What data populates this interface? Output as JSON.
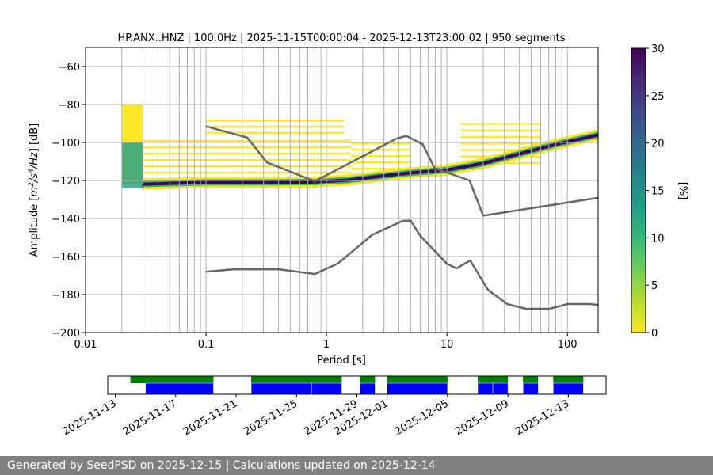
{
  "chart_data": [
    {
      "type": "heatmap",
      "title": "HP.ANX..HNZ | 100.0Hz | 2025-11-15T00:00:04 - 2025-12-13T23:00:02 | 950 segments",
      "xlabel": "Period [s]",
      "ylabel_parts": [
        "Amplitude [",
        "m",
        "2",
        "/s",
        "4",
        "/Hz",
        "] [dB]"
      ],
      "xscale": "log",
      "xlim": [
        0.01,
        180
      ],
      "ylim": [
        -200,
        -50
      ],
      "x_ticks": [
        {
          "value": 0.01,
          "label": "0.01"
        },
        {
          "value": 0.1,
          "label": "0.1"
        },
        {
          "value": 1,
          "label": "1"
        },
        {
          "value": 10,
          "label": "10"
        },
        {
          "value": 100,
          "label": "100"
        }
      ],
      "y_ticks": [
        {
          "value": -60,
          "label": "−60"
        },
        {
          "value": -80,
          "label": "−80"
        },
        {
          "value": -100,
          "label": "−100"
        },
        {
          "value": -120,
          "label": "−120"
        },
        {
          "value": -140,
          "label": "−140"
        },
        {
          "value": -160,
          "label": "−160"
        },
        {
          "value": -180,
          "label": "−180"
        },
        {
          "value": -200,
          "label": "−200"
        }
      ],
      "grid": true,
      "vertical_gridlines": [
        0.02,
        0.03,
        0.04,
        0.05,
        0.06,
        0.07,
        0.08,
        0.09,
        0.1,
        0.2,
        0.3,
        0.4,
        0.5,
        0.6,
        0.7,
        0.8,
        0.9,
        1,
        2,
        3,
        4,
        5,
        6,
        7,
        8,
        9,
        10,
        20,
        30,
        40,
        50,
        60,
        70,
        80,
        90,
        100
      ],
      "colorbar": {
        "label": "[%]",
        "range": [
          0,
          30
        ],
        "ticks": [
          {
            "value": 0,
            "label": "0"
          },
          {
            "value": 5,
            "label": "5"
          },
          {
            "value": 10,
            "label": "10"
          },
          {
            "value": 15,
            "label": "15"
          },
          {
            "value": 20,
            "label": "20"
          },
          {
            "value": 25,
            "label": "25"
          },
          {
            "value": 30,
            "label": "30"
          }
        ],
        "colors": [
          "#fde725",
          "#b5de2b",
          "#6ece58",
          "#35b779",
          "#1f9e89",
          "#26828e",
          "#31688e",
          "#3e4989",
          "#482878",
          "#440154"
        ]
      },
      "noise_models": [
        {
          "points": [
            [
              0.1,
              -91.5
            ],
            [
              0.22,
              -97.4
            ],
            [
              0.32,
              -110.5
            ],
            [
              0.8,
              -120.4
            ],
            [
              3.8,
              -98
            ],
            [
              4.6,
              -96.5
            ],
            [
              6.3,
              -101
            ],
            [
              7.9,
              -113.5
            ],
            [
              15.4,
              -120
            ],
            [
              20,
              -138.5
            ],
            [
              354.8,
              -126.2
            ]
          ]
        },
        {
          "points": [
            [
              0.1,
              -168.0
            ],
            [
              0.17,
              -166.7
            ],
            [
              0.4,
              -166.7
            ],
            [
              0.8,
              -169.2
            ],
            [
              1.24,
              -163.7
            ],
            [
              2.4,
              -148.6
            ],
            [
              4.3,
              -141.2
            ],
            [
              5.0,
              -141.1
            ],
            [
              6.0,
              -149.1
            ],
            [
              10.0,
              -163.8
            ],
            [
              12.0,
              -166.2
            ],
            [
              15.6,
              -162.1
            ],
            [
              21.9,
              -177.5
            ],
            [
              31.6,
              -185.0
            ],
            [
              45.0,
              -187.5
            ],
            [
              70.8,
              -187.5
            ],
            [
              101.0,
              -185.0
            ],
            [
              154.0,
              -185.0
            ],
            [
              328.0,
              -187.5
            ]
          ]
        }
      ],
      "mode_curve": [
        [
          0.029,
          -122
        ],
        [
          0.05,
          -121.5
        ],
        [
          0.1,
          -121
        ],
        [
          0.3,
          -121
        ],
        [
          0.8,
          -120.8
        ],
        [
          1.5,
          -119.8
        ],
        [
          3,
          -117.5
        ],
        [
          5,
          -116
        ],
        [
          10,
          -114.5
        ],
        [
          20,
          -111
        ],
        [
          40,
          -106
        ],
        [
          80,
          -101
        ],
        [
          180,
          -96
        ]
      ],
      "density_bands": [
        {
          "y_top": -88,
          "y_bottom": -96,
          "x_start": 0.1,
          "x_end": 1.4
        },
        {
          "y_top": -97,
          "y_bottom": -122,
          "x_start": 0.03,
          "x_end": 1.6
        },
        {
          "y_top": -100,
          "y_bottom": -120,
          "x_start": 1.6,
          "x_end": 5.0
        },
        {
          "y_top": -88,
          "y_bottom": -112,
          "x_start": 13,
          "x_end": 60
        }
      ]
    },
    {
      "type": "timeline",
      "x_ticks": [
        "2025-11-13",
        "2025-11-17",
        "2025-11-21",
        "2025-11-25",
        "2025-11-29",
        "2025-12-01",
        "2025-12-05",
        "2025-12-09",
        "2025-12-13"
      ],
      "x_tick_days": [
        0,
        4,
        8,
        12,
        16,
        18,
        22,
        26,
        30
      ],
      "xlim_days": [
        -0.5,
        32.5
      ],
      "origin_date": "2025-11-13",
      "green_segments": [
        [
          1.0,
          6.5
        ],
        [
          9.0,
          15.0
        ],
        [
          16.2,
          17.2
        ],
        [
          18.0,
          22.0
        ],
        [
          24.0,
          26.0
        ],
        [
          27.0,
          28.0
        ],
        [
          29.0,
          31.0
        ]
      ],
      "blue_segments": [
        [
          2.0,
          6.5
        ],
        [
          9.0,
          13.0
        ],
        [
          13.0,
          15.0
        ],
        [
          16.2,
          17.2
        ],
        [
          18.0,
          22.0
        ],
        [
          24.0,
          25.0
        ],
        [
          25.0,
          26.0
        ],
        [
          27.0,
          28.0
        ],
        [
          29.0,
          31.0
        ]
      ],
      "colors": {
        "green": "#008000",
        "blue": "#0000ff"
      }
    }
  ],
  "footer": {
    "text": "Generated by SeedPSD on 2025-12-15 | Calculations updated on 2025-12-14"
  }
}
